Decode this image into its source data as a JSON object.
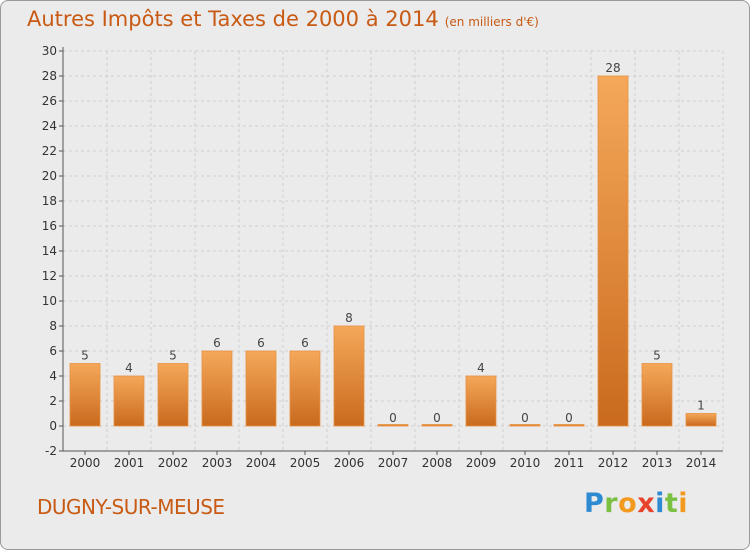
{
  "header": {
    "title": "Autres Impôts et Taxes de 2000 à 2014",
    "unit": "(en milliers d'€)"
  },
  "commune": "DUGNY-SUR-MEUSE",
  "logo": {
    "letters": [
      "P",
      "r",
      "o",
      "x",
      "i",
      "t",
      "i"
    ],
    "colors": [
      "#2e8bd1",
      "#7ac143",
      "#f29a1f",
      "#e8432d",
      "#2e8bd1",
      "#7ac143",
      "#f29a1f"
    ]
  },
  "colors": {
    "title": "#c85a14",
    "bar_light": "#f5a85a",
    "bar_dark": "#c96a1e",
    "background": "#ebebeb"
  },
  "chart_data": {
    "type": "bar",
    "title": "Autres Impôts et Taxes de 2000 à 2014",
    "subtitle": "(en milliers d'€)",
    "xlabel": "",
    "ylabel": "",
    "ylim": [
      -2,
      30
    ],
    "yticks": [
      -2,
      0,
      2,
      4,
      6,
      8,
      10,
      12,
      14,
      16,
      18,
      20,
      22,
      24,
      26,
      28,
      30
    ],
    "grid": true,
    "categories": [
      "2000",
      "2001",
      "2002",
      "2003",
      "2004",
      "2005",
      "2006",
      "2007",
      "2008",
      "2009",
      "2010",
      "2011",
      "2012",
      "2013",
      "2014"
    ],
    "values": [
      5,
      4,
      5,
      6,
      6,
      6,
      8,
      0,
      0,
      4,
      0,
      0,
      28,
      5,
      1
    ]
  }
}
